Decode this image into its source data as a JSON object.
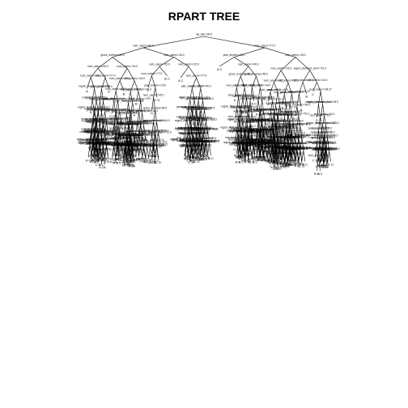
{
  "figure": {
    "title": "RPART TREE"
  },
  "tree": {
    "root_split": "sal_bal>=30.0",
    "split_labels": [
      "plan_tenure>=15.0",
      "num_users>=40.0",
      "gross_revenue<65.0",
      "num_users>=40.0",
      "num_users>=34.0",
      "region_licensed_num<18.0",
      "num_users>=34.0",
      "region_licensed_num>=31.0",
      "num_users>=42.5",
      "num_users>=34.27",
      "region_licensed>=64.0",
      "num_users>=76.0",
      "num_users>=87.5",
      "num_users>=13.0",
      "num_users>=16.0",
      "num_users>=22.0",
      "num_users>=77.0"
    ],
    "leaf_labels": [
      "A",
      "B",
      "C",
      "D",
      "C D",
      "B C",
      "A C"
    ]
  }
}
